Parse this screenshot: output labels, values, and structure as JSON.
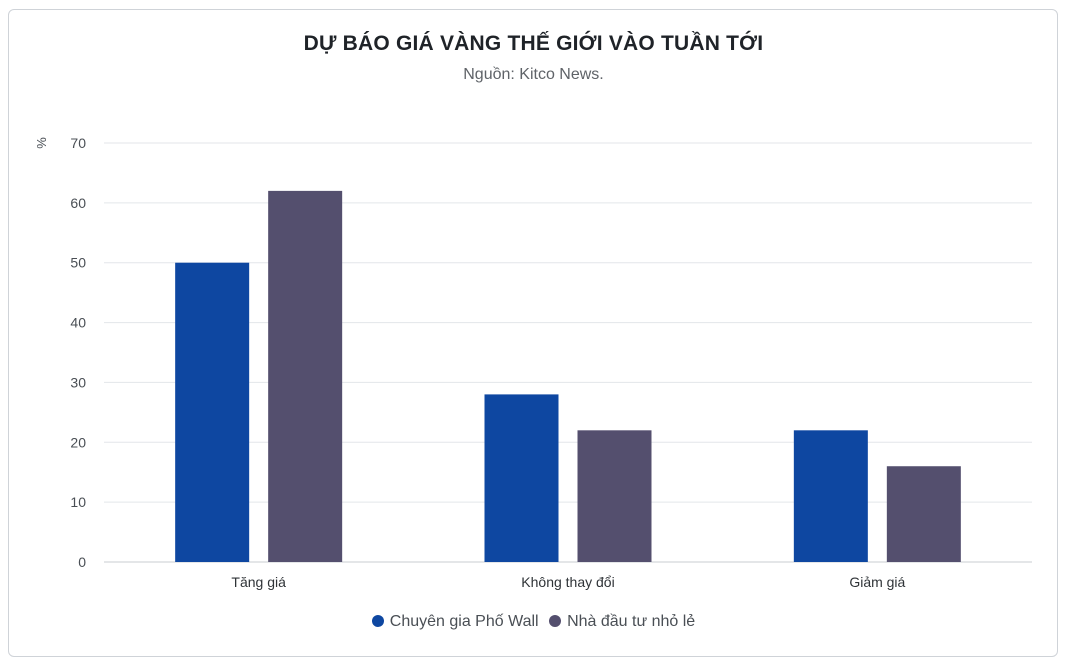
{
  "chart_data": {
    "type": "bar",
    "title": "DỰ BÁO GIÁ VÀNG THẾ GIỚI VÀO TUẦN TỚI",
    "subtitle": "Nguồn: Kitco News.",
    "ylabel": "%",
    "ylim": [
      0,
      70
    ],
    "yticks": [
      "0",
      "10",
      "20",
      "30",
      "40",
      "50",
      "60",
      "70"
    ],
    "categories": [
      "Tăng giá",
      "Không thay đổi",
      "Giảm giá"
    ],
    "series": [
      {
        "name": "Chuyên gia Phố Wall",
        "color": "#0e47a1",
        "values": [
          50,
          28,
          22
        ]
      },
      {
        "name": "Nhà đầu tư nhỏ lẻ",
        "color": "#544f6e",
        "values": [
          62,
          22,
          16
        ]
      }
    ],
    "grid": true,
    "legend_position": "bottom-center"
  }
}
